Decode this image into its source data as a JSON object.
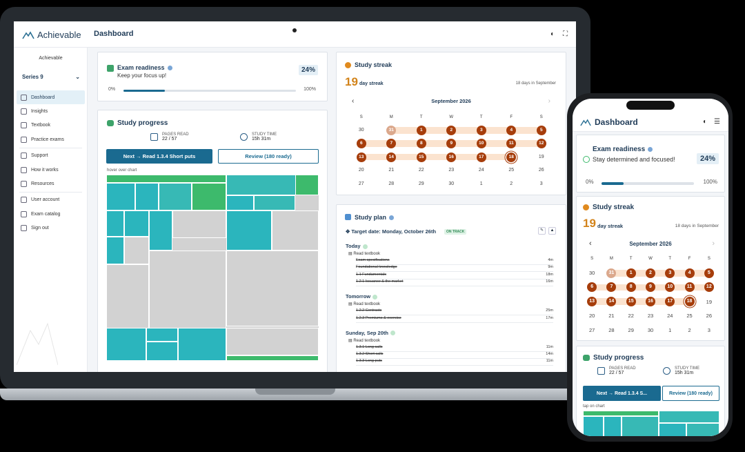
{
  "app": {
    "brand": "Achievable",
    "page_title": "Dashboard"
  },
  "sidebar": {
    "brand_label": "Achievable",
    "series": "Series 9",
    "groups": [
      [
        {
          "label": "Dashboard",
          "active": true
        },
        {
          "label": "Insights"
        },
        {
          "label": "Textbook"
        },
        {
          "label": "Practice exams"
        }
      ],
      [
        {
          "label": "Support"
        },
        {
          "label": "How it works"
        },
        {
          "label": "Resources"
        }
      ],
      [
        {
          "label": "User account"
        },
        {
          "label": "Exam catalog"
        },
        {
          "label": "Sign out"
        }
      ]
    ]
  },
  "readiness": {
    "title": "Exam readiness",
    "subtitle": "Keep your focus up!",
    "phone_subtitle": "Stay determined and focused!",
    "percent_label": "24%",
    "progress": 0.24,
    "min_label": "0%",
    "max_label": "100%"
  },
  "progress": {
    "title": "Study progress",
    "pages_label": "PAGES READ",
    "pages_value": "22 / 57",
    "time_label": "STUDY TIME",
    "time_value": "15h 31m",
    "next_button": "Next → Read 1.3.4 Short puts",
    "next_button_short": "Next → Read 1.3.4 S...",
    "review_button": "Review (180 ready)",
    "hint": "hover over chart",
    "phone_hint": "tap on chart"
  },
  "streak": {
    "title": "Study streak",
    "days": "19",
    "days_label": "day streak",
    "month_note": "18 days in September",
    "month": "September 2026",
    "weekdays": [
      "S",
      "M",
      "T",
      "W",
      "T",
      "F",
      "S"
    ],
    "weeks": [
      [
        {
          "d": "30"
        },
        {
          "d": "31",
          "s": "pale"
        },
        {
          "d": "1",
          "s": "on"
        },
        {
          "d": "2",
          "s": "on"
        },
        {
          "d": "3",
          "s": "on"
        },
        {
          "d": "4",
          "s": "on"
        },
        {
          "d": "5",
          "s": "on"
        }
      ],
      [
        {
          "d": "6",
          "s": "on"
        },
        {
          "d": "7",
          "s": "on"
        },
        {
          "d": "8",
          "s": "on"
        },
        {
          "d": "9",
          "s": "on"
        },
        {
          "d": "10",
          "s": "on"
        },
        {
          "d": "11",
          "s": "on"
        },
        {
          "d": "12",
          "s": "on"
        }
      ],
      [
        {
          "d": "13",
          "s": "on"
        },
        {
          "d": "14",
          "s": "on"
        },
        {
          "d": "15",
          "s": "on"
        },
        {
          "d": "16",
          "s": "on"
        },
        {
          "d": "17",
          "s": "on"
        },
        {
          "d": "18",
          "s": "today"
        },
        {
          "d": "19"
        }
      ],
      [
        {
          "d": "20"
        },
        {
          "d": "21"
        },
        {
          "d": "22"
        },
        {
          "d": "23"
        },
        {
          "d": "24"
        },
        {
          "d": "25"
        },
        {
          "d": "26"
        }
      ],
      [
        {
          "d": "27"
        },
        {
          "d": "28"
        },
        {
          "d": "29"
        },
        {
          "d": "30"
        },
        {
          "d": "1"
        },
        {
          "d": "2"
        },
        {
          "d": "3"
        }
      ]
    ]
  },
  "plan": {
    "title": "Study plan",
    "target": "Target date: Monday, October 26th",
    "status": "ON TRACK",
    "days": [
      {
        "label": "Today",
        "task": "Read textbook",
        "items": [
          {
            "name": "Exam specifications",
            "time": "4m"
          },
          {
            "name": "Foundational knowledge",
            "time": "9m"
          },
          {
            "name": "1.1 Fundamentals",
            "time": "18m"
          },
          {
            "name": "1.2.1 Issuance & the market",
            "time": "16m"
          }
        ]
      },
      {
        "label": "Tomorrow",
        "task": "Read textbook",
        "items": [
          {
            "name": "1.2.2 Contracts",
            "time": "25m"
          },
          {
            "name": "1.2.3 Premiums & exercise",
            "time": "17m"
          }
        ]
      },
      {
        "label": "Sunday, Sep 20th",
        "task": "Read textbook",
        "items": [
          {
            "name": "1.3.1 Long calls",
            "time": "11m"
          },
          {
            "name": "1.3.2 Short calls",
            "time": "14m"
          },
          {
            "name": "1.3.3 Long puts",
            "time": "11m"
          }
        ]
      }
    ]
  },
  "colors": {
    "accent": "#1a6a90",
    "streak": "#a63d0b",
    "teal": "#2bb5bd",
    "green": "#3dba6c"
  },
  "icons": [
    "logo-icon",
    "theme-icon",
    "fullscreen-icon",
    "menu-icon",
    "info-icon",
    "flame-icon",
    "calendar-icon",
    "book-icon",
    "timer-icon"
  ]
}
